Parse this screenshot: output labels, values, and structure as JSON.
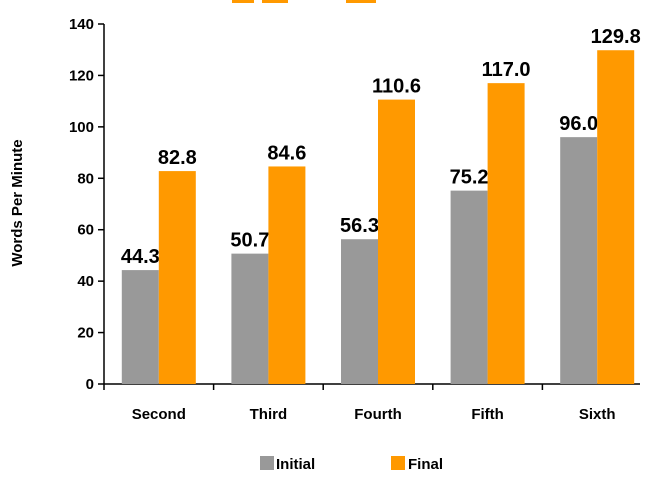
{
  "chart_data": {
    "type": "bar",
    "title": "",
    "xlabel": "",
    "ylabel": "Words Per Minute",
    "ylim": [
      0,
      140
    ],
    "yticks": [
      0,
      20,
      40,
      60,
      80,
      100,
      120,
      140
    ],
    "categories": [
      "Second",
      "Third",
      "Fourth",
      "Fifth",
      "Sixth"
    ],
    "series": [
      {
        "name": "Initial",
        "values": [
          44.3,
          50.7,
          56.3,
          75.2,
          96.0
        ],
        "labels": [
          "44.3",
          "50.7",
          "56.3",
          "75.2",
          "96.0"
        ],
        "color": "#999999"
      },
      {
        "name": "Final",
        "values": [
          82.8,
          84.6,
          110.6,
          117.0,
          129.8
        ],
        "labels": [
          "82.8",
          "84.6",
          "110.6",
          "117.0",
          "129.8"
        ],
        "color": "#ff9900"
      }
    ],
    "grid": false,
    "legend": "bottom"
  }
}
